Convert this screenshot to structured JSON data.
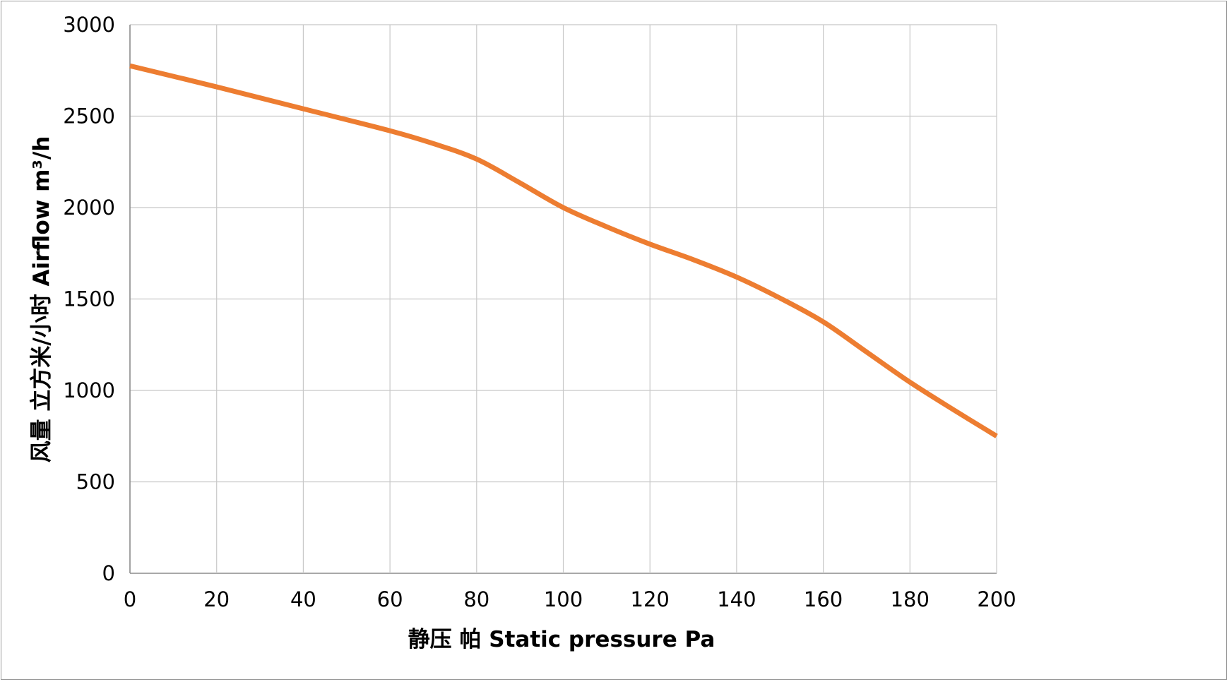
{
  "chart_data": {
    "type": "line",
    "title": "",
    "xlabel": "静压  帕 Static  pressure  Pa",
    "ylabel": "风量  立方米/小时 Airflow  m³/h",
    "xlim": [
      0,
      200
    ],
    "ylim": [
      0,
      3000
    ],
    "xticks": [
      0,
      20,
      40,
      60,
      80,
      100,
      120,
      140,
      160,
      180,
      200
    ],
    "yticks": [
      0,
      500,
      1000,
      1500,
      2000,
      2500,
      3000
    ],
    "grid": true,
    "legend": "none",
    "series": [
      {
        "name": "Airflow",
        "color": "#ed7d31",
        "x": [
          0,
          20,
          40,
          60,
          70,
          80,
          90,
          100,
          110,
          120,
          130,
          140,
          150,
          160,
          170,
          180,
          190,
          200
        ],
        "y": [
          2775,
          2660,
          2540,
          2420,
          2350,
          2265,
          2135,
          2000,
          1895,
          1800,
          1715,
          1620,
          1505,
          1375,
          1210,
          1045,
          895,
          750
        ]
      }
    ]
  }
}
